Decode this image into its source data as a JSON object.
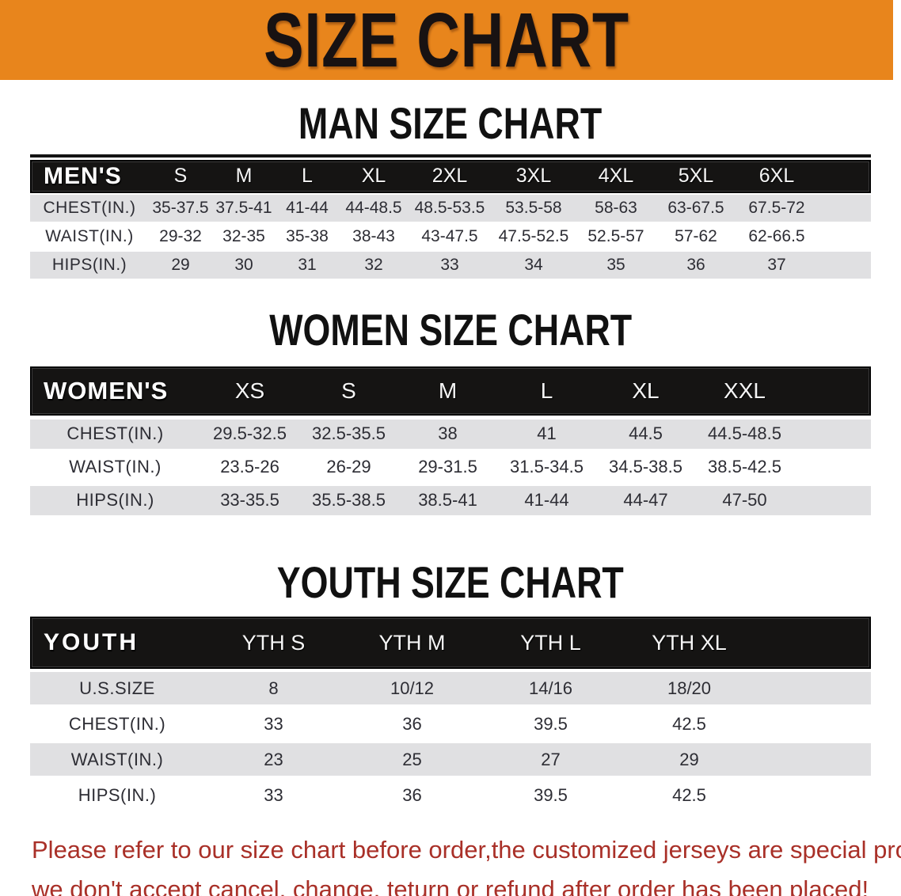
{
  "banner": {
    "title": "SIZE CHART",
    "background_color": "#e8851c",
    "text_color": "#181212"
  },
  "colors": {
    "table_header_bg": "#151413",
    "table_header_text": "#ffffff",
    "row_shade": "#e0e0e2",
    "body_text": "#2d2d34",
    "notice_text": "#a93028"
  },
  "sections": [
    {
      "heading": "MAN SIZE CHART",
      "corner_label": "MEN'S",
      "columns": [
        "S",
        "M",
        "L",
        "XL",
        "2XL",
        "3XL",
        "4XL",
        "5XL",
        "6XL"
      ],
      "rows": [
        {
          "label": "CHEST(IN.)",
          "values": [
            "35-37.5",
            "37.5-41",
            "41-44",
            "44-48.5",
            "48.5-53.5",
            "53.5-58",
            "58-63",
            "63-67.5",
            "67.5-72"
          ]
        },
        {
          "label": "WAIST(IN.)",
          "values": [
            "29-32",
            "32-35",
            "35-38",
            "38-43",
            "43-47.5",
            "47.5-52.5",
            "52.5-57",
            "57-62",
            "62-66.5"
          ]
        },
        {
          "label": "HIPS(IN.)",
          "values": [
            "29",
            "30",
            "31",
            "32",
            "33",
            "34",
            "35",
            "36",
            "37"
          ]
        }
      ]
    },
    {
      "heading": "WOMEN SIZE CHART",
      "corner_label": "WOMEN'S",
      "columns": [
        "XS",
        "S",
        "M",
        "L",
        "XL",
        "XXL"
      ],
      "rows": [
        {
          "label": "CHEST(IN.)",
          "values": [
            "29.5-32.5",
            "32.5-35.5",
            "38",
            "41",
            "44.5",
            "44.5-48.5"
          ]
        },
        {
          "label": "WAIST(IN.)",
          "values": [
            "23.5-26",
            "26-29",
            "29-31.5",
            "31.5-34.5",
            "34.5-38.5",
            "38.5-42.5"
          ]
        },
        {
          "label": "HIPS(IN.)",
          "values": [
            "33-35.5",
            "35.5-38.5",
            "38.5-41",
            "41-44",
            "44-47",
            "47-50"
          ]
        }
      ]
    },
    {
      "heading": "YOUTH SIZE CHART",
      "corner_label": "YOUTH",
      "columns": [
        "YTH S",
        "YTH M",
        "YTH L",
        "YTH XL"
      ],
      "rows": [
        {
          "label": "U.S.SIZE",
          "values": [
            "8",
            "10/12",
            "14/16",
            "18/20"
          ]
        },
        {
          "label": "CHEST(IN.)",
          "values": [
            "33",
            "36",
            "39.5",
            "42.5"
          ]
        },
        {
          "label": "WAIST(IN.)",
          "values": [
            "23",
            "25",
            "27",
            "29"
          ]
        },
        {
          "label": "HIPS(IN.)",
          "values": [
            "33",
            "36",
            "39.5",
            "42.5"
          ]
        }
      ]
    }
  ],
  "footer": {
    "line1": "Please refer to our size chart before order,the customized jerseys are special products,",
    "line2": "we don't accept cancel, change, teturn or refund after order has been placed!"
  }
}
